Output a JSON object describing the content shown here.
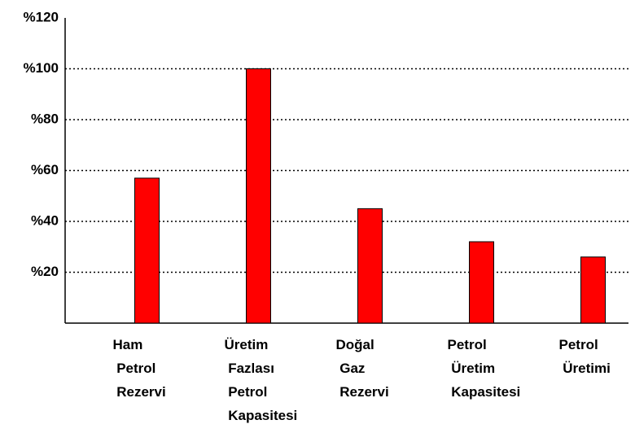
{
  "chart_data": {
    "type": "bar",
    "categories": [
      "Ham Petrol Rezervi",
      "Üretim Fazlası Petrol Kapasitesi",
      "Doğal Gaz Rezervi",
      "Petrol Üretim Kapasitesi",
      "Petrol Üretimi"
    ],
    "values": [
      57,
      100,
      45,
      32,
      26
    ],
    "color": "#ff0000",
    "ylim": [
      0,
      120
    ],
    "yticks": [
      {
        "value": 20,
        "label": "%20"
      },
      {
        "value": 40,
        "label": "%40"
      },
      {
        "value": 60,
        "label": "%60"
      },
      {
        "value": 80,
        "label": "%80"
      },
      {
        "value": 100,
        "label": "%100"
      },
      {
        "value": 120,
        "label": "%120"
      }
    ],
    "grid": true
  }
}
